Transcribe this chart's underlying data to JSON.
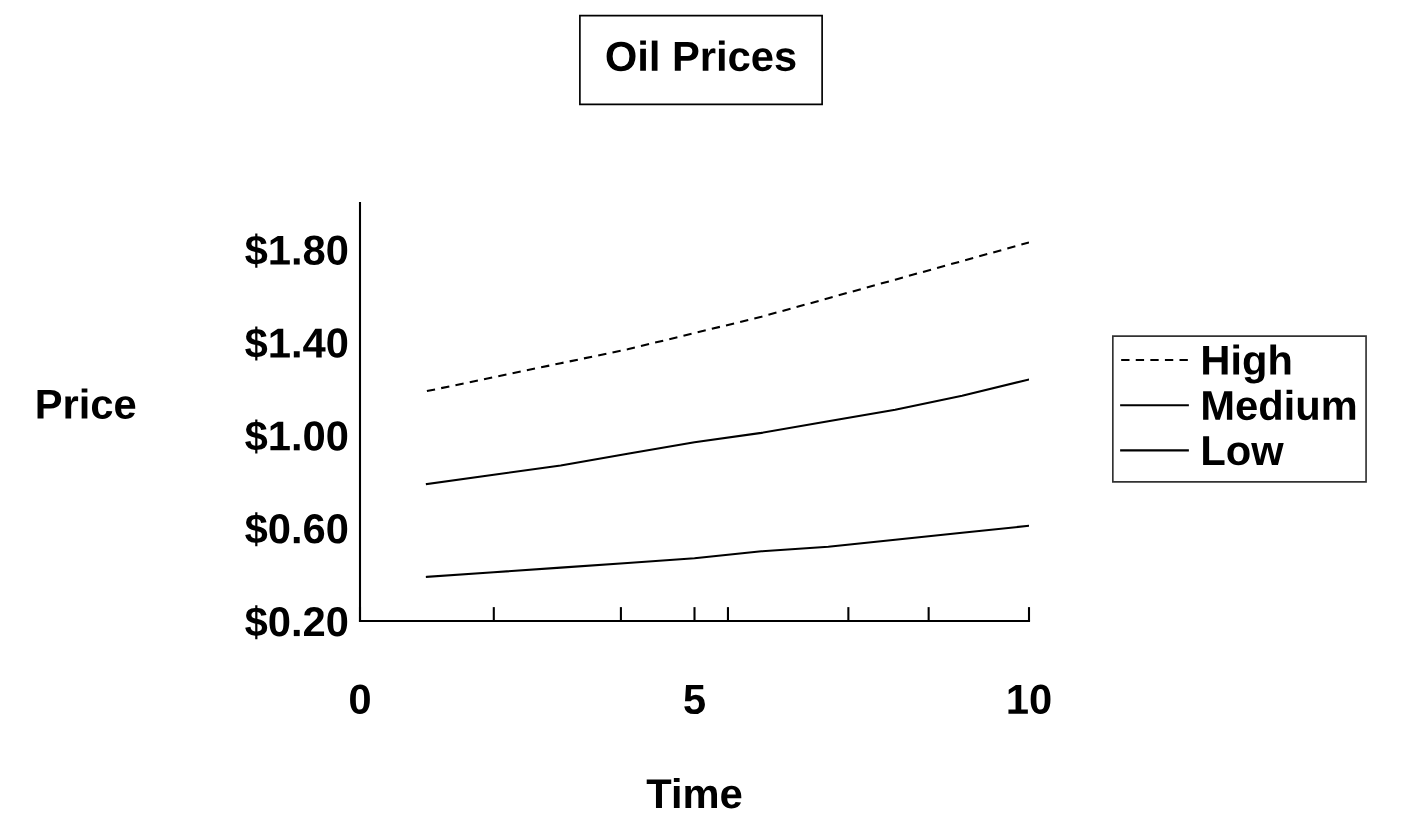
{
  "chart_data": {
    "type": "line",
    "title": "Oil Prices",
    "xlabel": "Time",
    "ylabel": "Price",
    "x": [
      1,
      2,
      3,
      4,
      5,
      6,
      7,
      8,
      9,
      10
    ],
    "series": [
      {
        "name": "High",
        "color": "#000000",
        "line_style": "dashed",
        "values": [
          1.19,
          1.25,
          1.31,
          1.37,
          1.44,
          1.51,
          1.59,
          1.67,
          1.75,
          1.83
        ]
      },
      {
        "name": "Medium",
        "color": "#000000",
        "line_style": "solid",
        "values": [
          0.79,
          0.83,
          0.87,
          0.92,
          0.97,
          1.01,
          1.06,
          1.11,
          1.17,
          1.24
        ]
      },
      {
        "name": "Low",
        "color": "#000000",
        "line_style": "solid",
        "values": [
          0.39,
          0.41,
          0.43,
          0.45,
          0.47,
          0.5,
          0.52,
          0.55,
          0.58,
          0.61
        ]
      }
    ],
    "xlim": [
      0,
      10
    ],
    "xticks": [
      0,
      {
        "value": 2,
        "label": null
      },
      {
        "value": 3.9,
        "label": null
      },
      5,
      {
        "value": 5.5,
        "label": null
      },
      {
        "value": 7.3,
        "label": null
      },
      {
        "value": 8.5,
        "label": null
      },
      10
    ],
    "ylim": [
      0.2,
      2.0
    ],
    "yticks": [
      {
        "value": 0.2,
        "label": "$0.20"
      },
      {
        "value": 0.6,
        "label": "$0.60"
      },
      {
        "value": 1.0,
        "label": "$1.00"
      },
      {
        "value": 1.4,
        "label": "$1.40"
      },
      {
        "value": 1.8,
        "label": "$1.80"
      }
    ],
    "grid": false,
    "legend": "right",
    "marker": "none"
  }
}
